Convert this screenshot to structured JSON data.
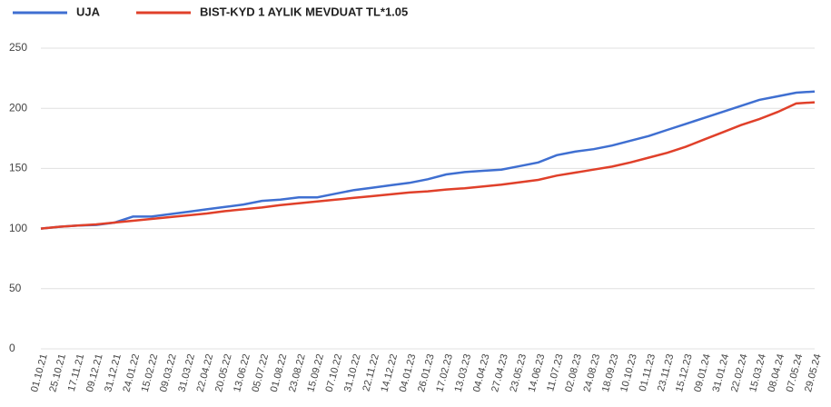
{
  "chart_data": {
    "type": "line",
    "categories": [
      "01.10.21",
      "25.10.21",
      "17.11.21",
      "09.12.21",
      "31.12.21",
      "24.01.22",
      "15.02.22",
      "09.03.22",
      "31.03.22",
      "22.04.22",
      "20.05.22",
      "13.06.22",
      "05.07.22",
      "01.08.22",
      "23.08.22",
      "15.09.22",
      "07.10.22",
      "31.10.22",
      "22.11.22",
      "14.12.22",
      "04.01.23",
      "26.01.23",
      "17.02.23",
      "13.03.23",
      "04.04.23",
      "27.04.23",
      "23.05.23",
      "14.06.23",
      "11.07.23",
      "02.08.23",
      "24.08.23",
      "18.09.23",
      "10.10.23",
      "01.11.23",
      "23.11.23",
      "15.12.23",
      "09.01.24",
      "31.01.24",
      "22.02.24",
      "15.03.24",
      "08.04.24",
      "07.05.24",
      "29.05.24"
    ],
    "series": [
      {
        "name": "UJA",
        "color": "#3f6fd1",
        "values": [
          100,
          101.5,
          102.5,
          103,
          105,
          110,
          110,
          112,
          114,
          116,
          118,
          120,
          123,
          124,
          126,
          126,
          129,
          132,
          134,
          136,
          138,
          141,
          145,
          147,
          148,
          149,
          152,
          155,
          161,
          164,
          166,
          169,
          173,
          177,
          182,
          187,
          192,
          197,
          202,
          207,
          210,
          213,
          214
        ]
      },
      {
        "name": "BIST-KYD 1 AYLIK MEVDUAT TL*1.05",
        "color": "#e0402a",
        "values": [
          100,
          101.5,
          102.5,
          103.5,
          105,
          106.5,
          108,
          109.5,
          111,
          112.5,
          114.5,
          116,
          117.5,
          119.5,
          121,
          122.5,
          124,
          125.5,
          127,
          128.5,
          130,
          131,
          132.5,
          133.5,
          135,
          136.5,
          138.5,
          140.5,
          144,
          146.5,
          149,
          151.5,
          155,
          159,
          163,
          168,
          174,
          180,
          186,
          191,
          197,
          204,
          205
        ]
      }
    ],
    "ylim": [
      0,
      250
    ],
    "yticks": [
      0,
      50,
      100,
      150,
      200,
      250
    ],
    "grid": true,
    "legend": "top-left"
  }
}
